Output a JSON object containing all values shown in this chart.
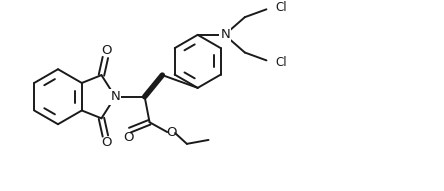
{
  "bg_color": "#ffffff",
  "line_color": "#1a1a1a",
  "line_width": 1.4,
  "font_size": 8.5,
  "figsize": [
    4.44,
    1.91
  ],
  "dpi": 100,
  "labels": {
    "O_top": "O",
    "O_bottom": "O",
    "N_phthal": "N",
    "O_ester_dbl": "O",
    "O_ester_single": "O",
    "N_amino": "N",
    "Cl_top": "Cl",
    "Cl_bottom": "Cl"
  }
}
